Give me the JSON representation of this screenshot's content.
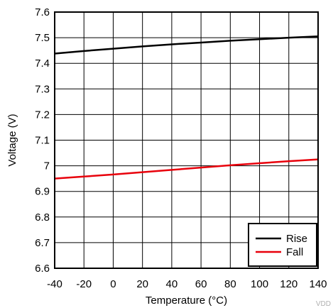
{
  "chart_data": {
    "type": "line",
    "title": "",
    "xlabel": "Temperature (°C)",
    "ylabel": "Voltage (V)",
    "xlim": [
      -40,
      140
    ],
    "ylim": [
      6.6,
      7.6
    ],
    "grid": true,
    "legend_position": "bottom-right",
    "x_ticks": [
      "-40",
      "-20",
      "0",
      "20",
      "40",
      "60",
      "80",
      "100",
      "120",
      "140"
    ],
    "y_ticks": [
      "6.6",
      "6.7",
      "6.8",
      "6.9",
      "7",
      "7.1",
      "7.2",
      "7.3",
      "7.4",
      "7.5",
      "7.6"
    ],
    "series": [
      {
        "name": "Rise",
        "color": "#000000",
        "points": [
          [
            -40,
            7.438
          ],
          [
            -20,
            7.448
          ],
          [
            0,
            7.457
          ],
          [
            20,
            7.466
          ],
          [
            40,
            7.474
          ],
          [
            60,
            7.481
          ],
          [
            80,
            7.488
          ],
          [
            100,
            7.494
          ],
          [
            120,
            7.5
          ],
          [
            140,
            7.505
          ]
        ]
      },
      {
        "name": "Fall",
        "color": "#e8000b",
        "points": [
          [
            -40,
            6.95
          ],
          [
            -20,
            6.958
          ],
          [
            0,
            6.966
          ],
          [
            20,
            6.975
          ],
          [
            40,
            6.984
          ],
          [
            60,
            6.993
          ],
          [
            80,
            7.002
          ],
          [
            100,
            7.01
          ],
          [
            120,
            7.018
          ],
          [
            140,
            7.025
          ]
        ]
      }
    ]
  },
  "corner_code": "VDD"
}
